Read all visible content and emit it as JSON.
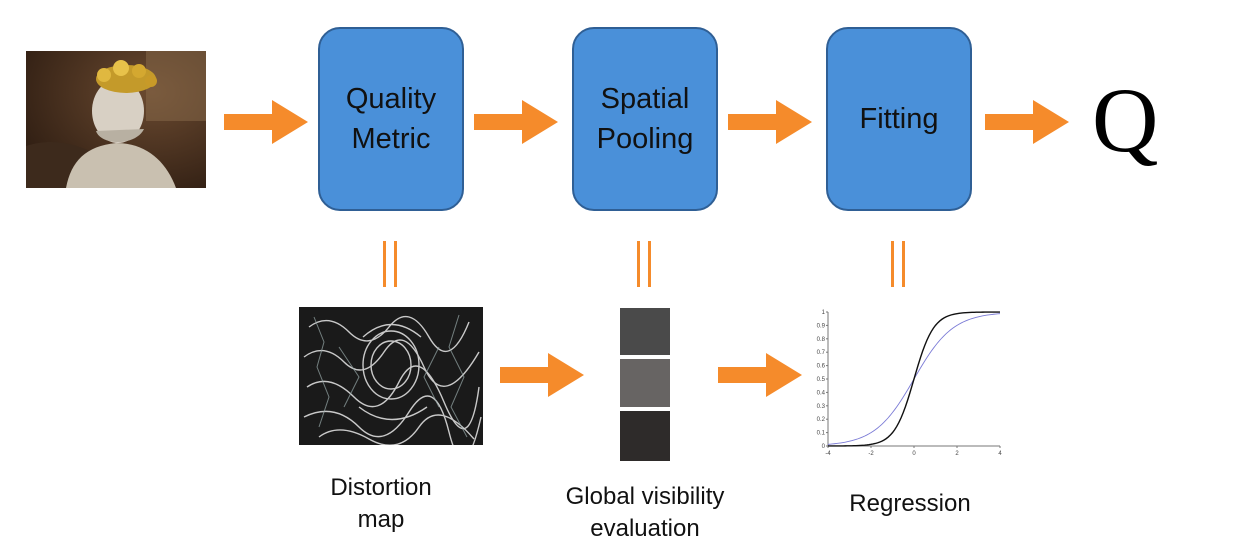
{
  "pipeline": {
    "blocks": [
      {
        "id": "quality-metric",
        "line1": "Quality",
        "line2": "Metric"
      },
      {
        "id": "spatial-pooling",
        "line1": "Spatial",
        "line2": "Pooling"
      },
      {
        "id": "fitting",
        "line1": "Fitting",
        "line2": ""
      }
    ],
    "output_symbol": "Q"
  },
  "captions": {
    "distortion_map": {
      "line1": "Distortion",
      "line2": "map"
    },
    "pooling": {
      "line1": "Global visibility",
      "line2": "evaluation"
    },
    "regression": {
      "line1": "Regression",
      "line2": ""
    }
  },
  "pooling_bars": {
    "shades": [
      "#4a4a4a",
      "#676463",
      "#2e2b2a"
    ]
  },
  "regression_plot": {
    "x_ticks": [
      "-4",
      "-2",
      "0",
      "2",
      "4"
    ],
    "y_ticks": [
      "0",
      "0.1",
      "0.2",
      "0.3",
      "0.4",
      "0.5",
      "0.6",
      "0.7",
      "0.8",
      "0.9",
      "1"
    ]
  },
  "colors": {
    "arrow": "#f58b2b",
    "block_fill": "#4a90d9",
    "block_border": "#2f5f95",
    "blue_curve": "#7b7bd6"
  }
}
